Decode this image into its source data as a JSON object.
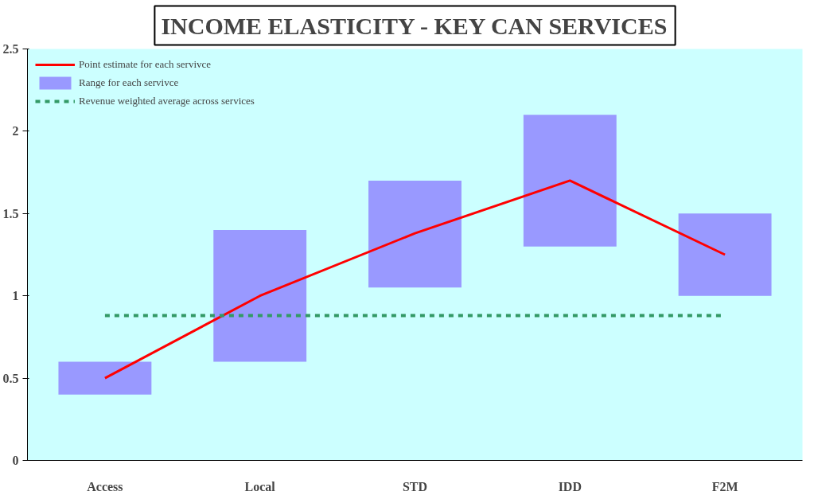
{
  "chart_data": {
    "type": "bar",
    "title": "INCOME ELASTICITY - KEY CAN SERVICES",
    "categories": [
      "Access",
      "Local",
      "STD",
      "IDD",
      "F2M"
    ],
    "series": [
      {
        "name": "Point estimate for each servivce",
        "type": "line",
        "color": "#ff0000",
        "values": [
          0.5,
          1.0,
          1.38,
          1.7,
          1.25
        ]
      },
      {
        "name": "Range for each servivce",
        "color": "#9999ff",
        "base": [
          0.4,
          0.6,
          1.05,
          1.3,
          1.0
        ],
        "values": [
          0.2,
          0.8,
          0.65,
          0.8,
          0.5
        ]
      }
    ],
    "ref_lines": [
      {
        "axis": "y",
        "value": 0.88,
        "label": "Revenue weighted average across services",
        "color": "#339966",
        "line_style": "dashed"
      }
    ],
    "ylim": [
      0,
      2.5
    ],
    "yticks": [
      0,
      0.5,
      1,
      1.5,
      2,
      2.5
    ],
    "grid": false,
    "legend": "top left"
  }
}
